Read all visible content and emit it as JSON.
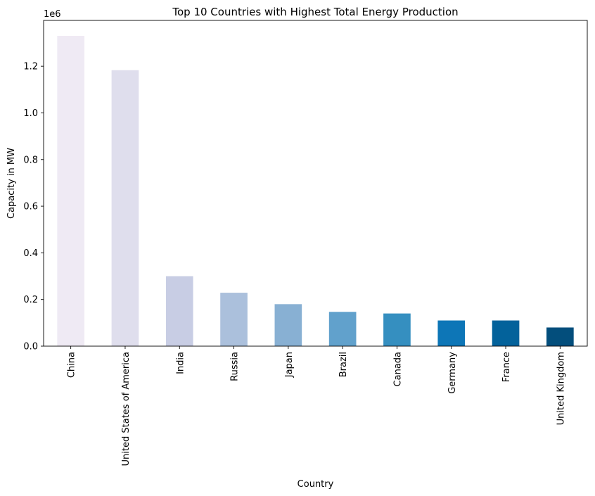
{
  "chart_data": {
    "type": "bar",
    "title": "Top 10 Countries with Highest Total Energy Production",
    "xlabel": "Country",
    "ylabel": "Capacity in MW",
    "y_scale_label": "1e6",
    "categories": [
      "China",
      "United States of America",
      "India",
      "Russia",
      "Japan",
      "Brazil",
      "Canada",
      "Germany",
      "France",
      "United Kingdom"
    ],
    "values": [
      1330000,
      1183000,
      300000,
      229000,
      180000,
      147000,
      140000,
      110000,
      110000,
      80000
    ],
    "colors": [
      "#efeaf4",
      "#dfdeed",
      "#c8cde4",
      "#abc0dc",
      "#88b0d3",
      "#61a1cc",
      "#358fc0",
      "#0d76b7",
      "#03629b",
      "#034e7c"
    ],
    "ylim": [
      0,
      1396500
    ],
    "yticks": [
      0,
      200000,
      400000,
      600000,
      800000,
      1000000,
      1200000
    ],
    "ytick_labels": [
      "0.0",
      "0.2",
      "0.4",
      "0.6",
      "0.8",
      "1.0",
      "1.2"
    ],
    "grid": false,
    "legend": "none"
  }
}
